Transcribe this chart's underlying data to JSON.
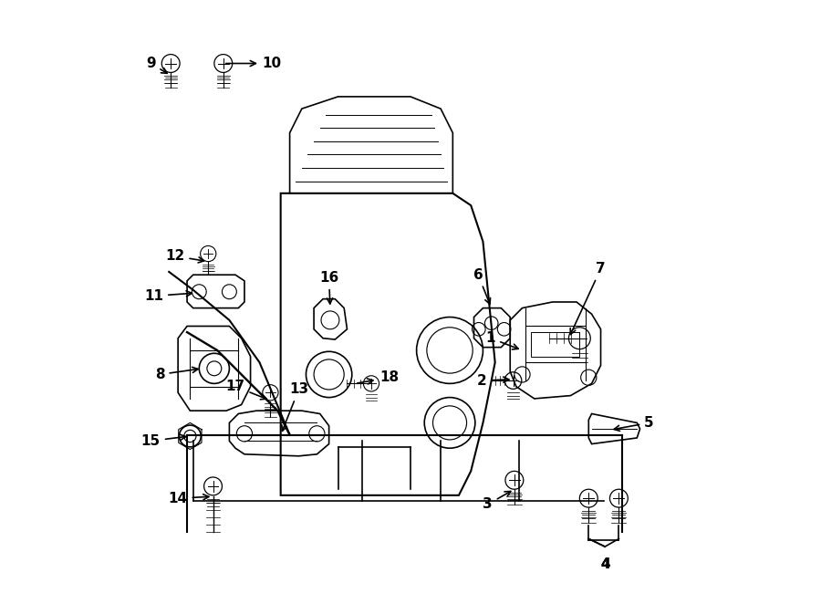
{
  "bg_color": "#ffffff",
  "line_color": "#000000",
  "figsize": [
    9.0,
    6.62
  ],
  "dpi": 100,
  "labels": {
    "1": [
      0.735,
      0.535,
      0.71,
      0.525
    ],
    "2": [
      0.67,
      0.375,
      0.705,
      0.36
    ],
    "3": [
      0.665,
      0.18,
      0.695,
      0.205
    ],
    "4": [
      0.82,
      0.06,
      0.82,
      0.13
    ],
    "5": [
      0.91,
      0.34,
      0.875,
      0.31
    ],
    "6": [
      0.61,
      0.545,
      0.635,
      0.585
    ],
    "7": [
      0.82,
      0.565,
      0.775,
      0.55
    ],
    "8": [
      0.1,
      0.37,
      0.155,
      0.36
    ],
    "9": [
      0.07,
      0.1,
      0.1,
      0.135
    ],
    "10": [
      0.24,
      0.115,
      0.19,
      0.13
    ],
    "11": [
      0.085,
      0.49,
      0.145,
      0.495
    ],
    "12": [
      0.115,
      0.425,
      0.165,
      0.415
    ],
    "13": [
      0.34,
      0.65,
      0.36,
      0.63
    ],
    "14": [
      0.145,
      0.825,
      0.175,
      0.815
    ],
    "15": [
      0.075,
      0.73,
      0.125,
      0.725
    ],
    "16": [
      0.4,
      0.535,
      0.415,
      0.565
    ],
    "17": [
      0.235,
      0.63,
      0.265,
      0.655
    ],
    "18": [
      0.48,
      0.635,
      0.44,
      0.625
    ]
  }
}
